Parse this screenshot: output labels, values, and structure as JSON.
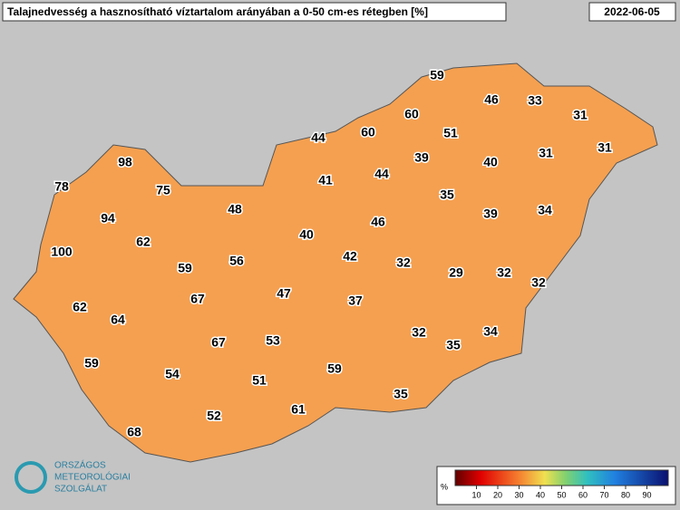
{
  "header": {
    "title": "Talajnedvesség a hasznosítható víztartalom arányában a 0-50 cm-es rétegben [%]",
    "date": "2022-06-05"
  },
  "labels": [
    59,
    46,
    33,
    60,
    31,
    60,
    51,
    44,
    39,
    31,
    31,
    40,
    98,
    44,
    41,
    78,
    75,
    35,
    48,
    94,
    39,
    34,
    46,
    40,
    62,
    100,
    42,
    32,
    29,
    32,
    32,
    56,
    59,
    47,
    37,
    67,
    62,
    64,
    32,
    34,
    35,
    67,
    53,
    59,
    54,
    59,
    51,
    35,
    61,
    52,
    68
  ],
  "legend": {
    "unit": "%",
    "ticks": [
      10,
      20,
      30,
      40,
      50,
      60,
      70,
      80,
      90
    ]
  },
  "logo": [
    "ORSZÁGOS",
    "METEOROLÓGIAI",
    "SZOLGÁLAT"
  ]
}
